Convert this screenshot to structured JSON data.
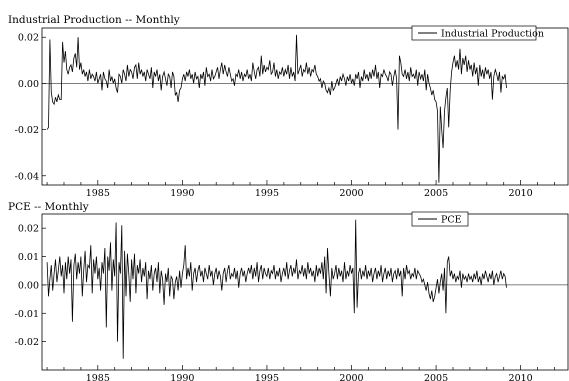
{
  "chart_data": [
    {
      "type": "line",
      "title": "Industrial Production -- Monthly",
      "xlabel": "",
      "ylabel": "",
      "xlim": [
        1981.7,
        2012.8
      ],
      "ylim": [
        -0.044,
        0.024
      ],
      "xticks": [
        1985,
        1990,
        1995,
        2000,
        2005,
        2010
      ],
      "yticks": [
        -0.04,
        -0.02,
        0.0,
        0.02
      ],
      "ytick_labels": [
        "-0.04",
        "-0.02",
        "0.00",
        "0.02"
      ],
      "zero_line": true,
      "grid": false,
      "legend": "top-right",
      "series": [
        {
          "name": "Industrial Production",
          "color": "#000000",
          "start": 1982.0,
          "step": 0.08333,
          "values": [
            -0.02,
            -0.019,
            0.019,
            -0.004,
            -0.008,
            -0.009,
            -0.006,
            -0.008,
            -0.005,
            -0.007,
            -0.007,
            0.018,
            0.009,
            0.014,
            0.006,
            0.004,
            0.007,
            0.008,
            0.005,
            0.011,
            0.013,
            0.007,
            0.02,
            0.006,
            0.009,
            0.004,
            0.006,
            0.003,
            0.005,
            0.001,
            0.006,
            0.002,
            0.004,
            0.003,
            0.001,
            0.005,
            0.0,
            0.002,
            0.004,
            -0.003,
            0.005,
            0.002,
            0.001,
            -0.002,
            0.006,
            0.001,
            0.003,
            0.0,
            0.002,
            -0.002,
            -0.004,
            0.004,
            0.003,
            0.0,
            0.006,
            0.004,
            0.001,
            0.008,
            0.003,
            0.006,
            0.005,
            0.002,
            0.007,
            0.008,
            0.002,
            0.009,
            0.004,
            0.006,
            0.003,
            0.005,
            0.001,
            0.006,
            0.004,
            0.002,
            0.007,
            -0.002,
            0.005,
            0.003,
            0.006,
            0.001,
            0.004,
            -0.003,
            0.003,
            0.005,
            0.002,
            -0.001,
            0.004,
            0.003,
            -0.002,
            0.005,
            0.003,
            -0.005,
            -0.004,
            -0.008,
            -0.003,
            -0.002,
            0.002,
            0.004,
            0.001,
            0.005,
            0.003,
            0.006,
            0.002,
            0.004,
            0.0,
            0.005,
            0.002,
            0.003,
            -0.002,
            0.004,
            0.002,
            0.005,
            -0.001,
            0.007,
            0.003,
            0.004,
            0.001,
            0.006,
            0.002,
            0.003,
            0.005,
            0.007,
            0.002,
            0.006,
            0.009,
            0.004,
            0.008,
            0.005,
            0.003,
            0.007,
            0.004,
            0.001,
            0.002,
            -0.001,
            0.004,
            0.003,
            0.006,
            0.002,
            0.005,
            0.001,
            0.004,
            0.003,
            0.006,
            0.002,
            0.004,
            0.001,
            0.009,
            0.005,
            0.002,
            0.006,
            0.007,
            0.003,
            0.012,
            0.004,
            0.008,
            0.005,
            0.007,
            0.006,
            0.01,
            0.004,
            0.005,
            0.009,
            0.003,
            0.006,
            0.002,
            0.005,
            0.004,
            0.007,
            0.003,
            0.006,
            0.004,
            0.008,
            0.002,
            0.007,
            0.003,
            0.005,
            0.001,
            0.021,
            0.004,
            0.006,
            0.008,
            0.003,
            0.006,
            0.005,
            0.009,
            0.004,
            0.007,
            0.003,
            0.006,
            0.005,
            0.008,
            0.004,
            0.003,
            0.001,
            0.002,
            -0.002,
            0.001,
            0.0,
            -0.003,
            -0.004,
            -0.002,
            -0.005,
            0.001,
            -0.003,
            -0.002,
            0.0,
            0.002,
            -0.001,
            0.003,
            0.001,
            0.004,
            0.002,
            -0.001,
            0.003,
            0.001,
            0.004,
            0.0,
            0.002,
            -0.001,
            0.004,
            0.002,
            0.005,
            -0.002,
            0.003,
            0.001,
            0.006,
            0.002,
            0.004,
            0.001,
            0.005,
            0.002,
            0.006,
            0.003,
            0.008,
            0.002,
            0.005,
            -0.002,
            0.004,
            0.003,
            0.006,
            0.004,
            0.003,
            0.001,
            0.005,
            0.004,
            -0.001,
            0.003,
            0.006,
            0.002,
            -0.02,
            0.012,
            0.009,
            0.004,
            0.003,
            0.006,
            0.002,
            0.005,
            0.001,
            0.007,
            0.003,
            0.004,
            0.002,
            0.006,
            -0.001,
            0.005,
            0.002,
            0.004,
            0.001,
            0.006,
            -0.003,
            0.004,
            0.0,
            -0.002,
            -0.005,
            -0.003,
            -0.007,
            -0.008,
            -0.012,
            -0.043,
            -0.01,
            -0.02,
            -0.028,
            -0.012,
            -0.006,
            -0.002,
            -0.019,
            -0.003,
            0.005,
            0.009,
            0.012,
            0.007,
            0.01,
            0.006,
            0.015,
            0.004,
            0.011,
            0.008,
            0.012,
            0.005,
            0.01,
            0.006,
            0.008,
            0.003,
            0.009,
            0.004,
            0.007,
            -0.001,
            0.008,
            0.003,
            0.006,
            0.002,
            0.007,
            0.004,
            0.006,
            0.002,
            0.005,
            -0.007,
            0.003,
            0.006,
            0.004,
            0.001,
            0.005,
            -0.004,
            0.003,
            0.002,
            0.004,
            -0.002
          ]
        }
      ]
    },
    {
      "type": "line",
      "title": "PCE -- Monthly",
      "xlabel": "",
      "ylabel": "",
      "xlim": [
        1981.7,
        2012.8
      ],
      "ylim": [
        -0.03,
        0.025
      ],
      "xticks": [
        1985,
        1990,
        1995,
        2000,
        2005,
        2010
      ],
      "yticks": [
        -0.02,
        -0.01,
        0.0,
        0.01,
        0.02
      ],
      "ytick_labels": [
        "-0.02",
        "-0.01",
        "0.00",
        "0.01",
        "0.02"
      ],
      "zero_line": true,
      "grid": false,
      "legend": "top-right",
      "series": [
        {
          "name": "PCE",
          "color": "#000000",
          "start": 1982.0,
          "step": 0.08333,
          "values": [
            0.008,
            -0.004,
            0.002,
            0.007,
            -0.002,
            0.004,
            0.009,
            0.001,
            0.005,
            0.01,
            0.003,
            0.007,
            -0.003,
            0.008,
            0.002,
            0.01,
            0.004,
            0.009,
            -0.013,
            0.007,
            0.011,
            0.002,
            0.008,
            0.004,
            0.01,
            -0.004,
            0.005,
            0.012,
            0.001,
            0.007,
            0.006,
            0.014,
            -0.003,
            0.009,
            0.004,
            0.01,
            0.002,
            0.006,
            -0.002,
            0.008,
            0.004,
            0.013,
            -0.015,
            0.01,
            0.005,
            0.015,
            -0.002,
            0.009,
            0.003,
            0.022,
            -0.02,
            0.008,
            0.004,
            0.021,
            -0.026,
            0.012,
            -0.004,
            0.011,
            0.004,
            -0.006,
            0.009,
            0.002,
            0.011,
            -0.003,
            0.007,
            0.004,
            0.009,
            0.001,
            0.006,
            0.003,
            0.008,
            -0.005,
            0.005,
            0.002,
            0.007,
            -0.002,
            0.004,
            0.006,
            0.001,
            0.008,
            -0.003,
            0.005,
            0.002,
            -0.007,
            0.004,
            0.001,
            0.006,
            -0.004,
            0.003,
            0.002,
            -0.005,
            0.001,
            0.003,
            -0.002,
            0.005,
            -0.001,
            0.004,
            0.007,
            0.014,
            0.002,
            0.006,
            0.003,
            0.008,
            -0.002,
            0.004,
            0.006,
            0.001,
            0.005,
            0.007,
            0.003,
            0.005,
            0.001,
            0.006,
            0.004,
            0.002,
            0.007,
            0.003,
            0.005,
            0.0,
            0.004,
            0.006,
            0.002,
            0.005,
            0.003,
            -0.002,
            0.004,
            0.006,
            0.001,
            0.005,
            0.007,
            0.002,
            0.004,
            0.003,
            0.006,
            0.002,
            0.005,
            -0.001,
            0.004,
            0.006,
            0.003,
            0.005,
            0.001,
            0.004,
            0.006,
            0.004,
            0.007,
            0.002,
            0.006,
            0.003,
            0.008,
            0.001,
            0.005,
            0.007,
            0.002,
            0.006,
            0.004,
            0.003,
            0.006,
            0.002,
            0.005,
            0.004,
            0.007,
            0.002,
            0.005,
            0.003,
            0.006,
            0.001,
            0.004,
            0.006,
            0.003,
            0.008,
            0.002,
            0.005,
            0.007,
            0.003,
            0.006,
            0.004,
            0.009,
            0.002,
            0.005,
            0.004,
            0.007,
            0.003,
            0.006,
            0.002,
            0.008,
            0.004,
            0.006,
            0.003,
            0.005,
            0.001,
            0.007,
            0.003,
            0.006,
            0.004,
            0.008,
            0.002,
            0.01,
            -0.003,
            0.013,
            0.004,
            -0.004,
            0.006,
            0.002,
            0.004,
            0.007,
            0.002,
            0.006,
            0.003,
            0.005,
            0.001,
            0.008,
            0.002,
            0.005,
            0.003,
            0.007,
            0.004,
            0.006,
            -0.01,
            0.023,
            -0.008,
            0.004,
            0.006,
            0.002,
            0.005,
            0.003,
            0.007,
            0.002,
            0.005,
            0.003,
            0.006,
            0.001,
            0.004,
            0.006,
            0.002,
            0.005,
            0.003,
            0.007,
            0.001,
            0.004,
            0.006,
            0.002,
            0.005,
            0.003,
            0.006,
            0.001,
            0.004,
            0.005,
            0.002,
            0.006,
            0.003,
            0.005,
            -0.004,
            0.006,
            0.002,
            0.007,
            0.004,
            0.005,
            0.002,
            0.004,
            0.003,
            0.006,
            0.002,
            0.005,
            0.004,
            0.003,
            0.001,
            0.002,
            0.0,
            -0.002,
            0.001,
            -0.003,
            -0.005,
            -0.002,
            -0.006,
            -0.004,
            -0.001,
            0.002,
            -0.003,
            0.001,
            0.004,
            -0.002,
            0.006,
            -0.01,
            0.008,
            0.01,
            0.003,
            0.005,
            0.002,
            0.004,
            0.001,
            0.003,
            0.002,
            0.005,
            -0.001,
            0.004,
            0.002,
            0.003,
            0.001,
            0.004,
            0.002,
            0.003,
            0.001,
            0.004,
            0.002,
            0.005,
            0.001,
            0.003,
            0.0,
            0.004,
            0.002,
            0.005,
            0.003,
            0.001,
            0.004,
            0.002,
            0.005,
            0.0,
            0.003,
            0.004,
            0.001,
            0.003,
            0.005,
            0.002,
            0.004,
            0.003,
            -0.001
          ]
        }
      ]
    }
  ]
}
